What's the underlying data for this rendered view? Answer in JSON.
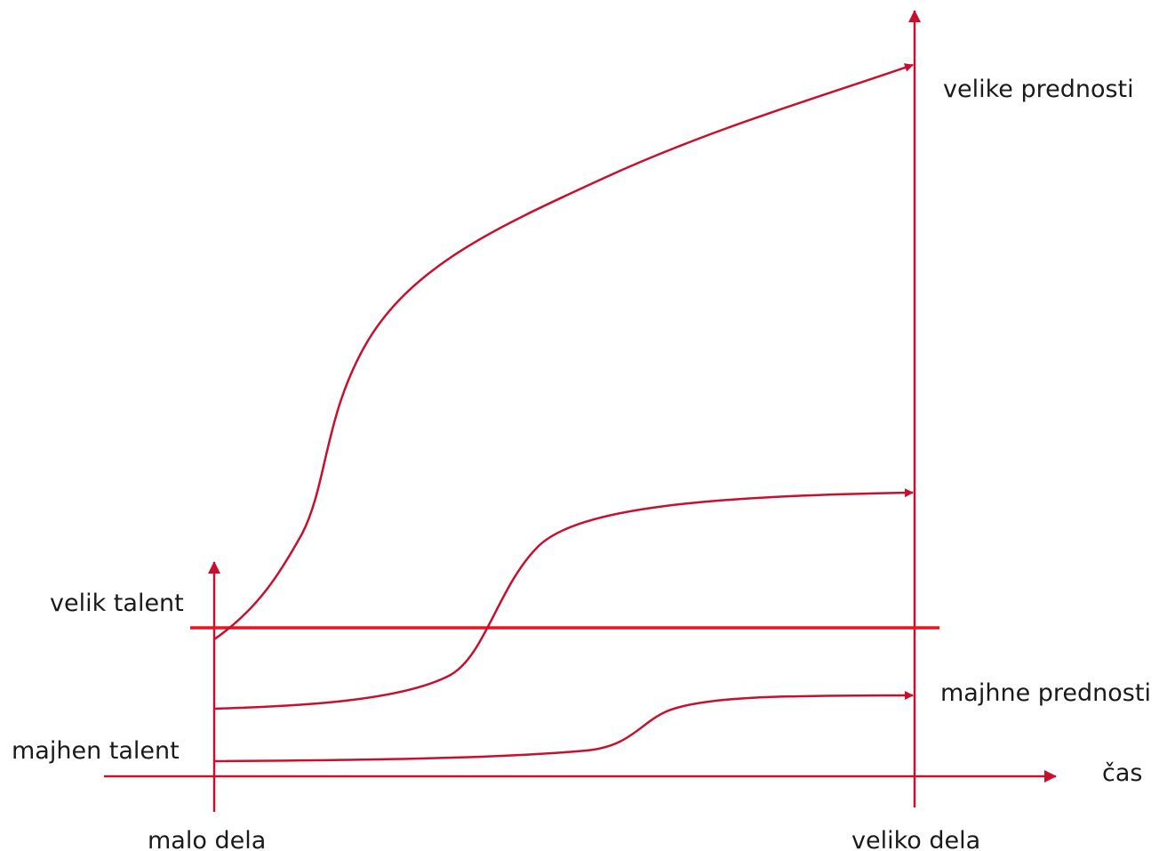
{
  "labels": {
    "top_right": "velike prednosti",
    "mid_right": "majhne prednosti",
    "left_high": "velik talent",
    "left_low": "majhen talent",
    "axis_time": "čas",
    "bottom_left": "malo dela",
    "bottom_right": "veliko dela"
  },
  "colors": {
    "line": "#c8102e",
    "threshold": "#e8141e",
    "text": "#1a1a1a"
  }
}
